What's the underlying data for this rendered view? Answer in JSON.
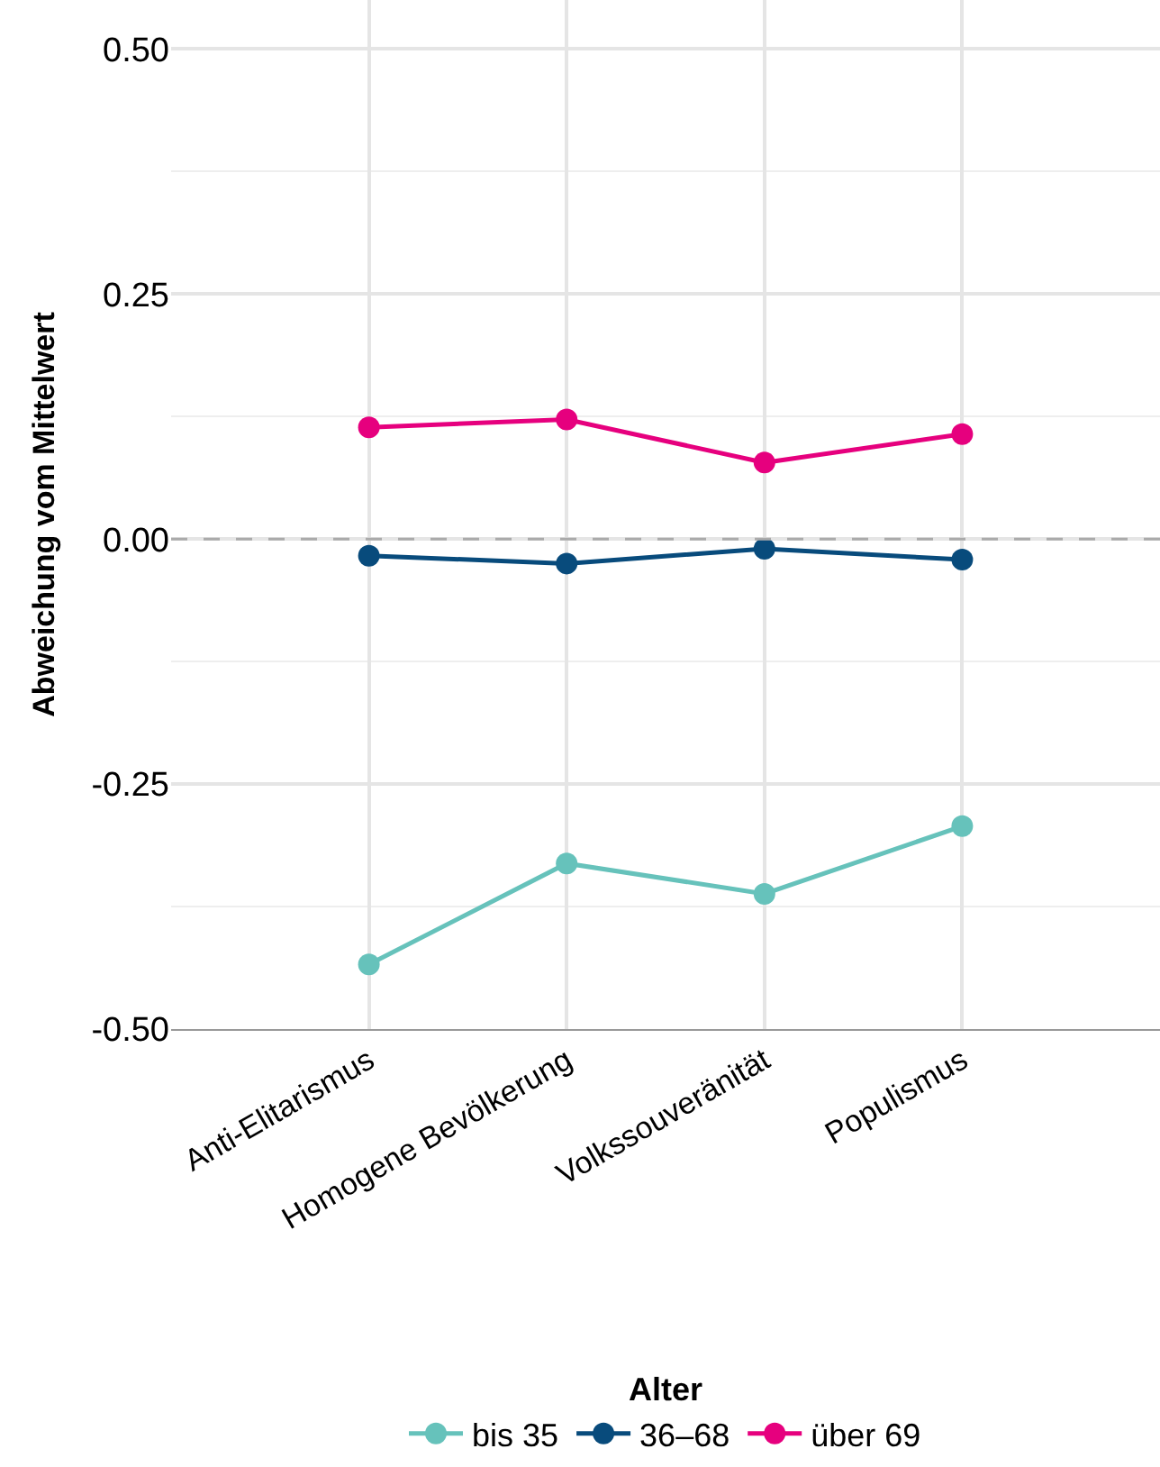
{
  "chart_data": {
    "type": "line",
    "ylabel": "Abweichung vom Mittelwert",
    "legend_title": "Alter",
    "categories": [
      "Anti-Elitarismus",
      "Homogene Bevölkerung",
      "Volkssouveränität",
      "Populismus"
    ],
    "series": [
      {
        "name": "bis 35",
        "color": "#66c2bb",
        "values": [
          -0.434,
          -0.331,
          -0.362,
          -0.293
        ]
      },
      {
        "name": "36–68",
        "color": "#084b7c",
        "values": [
          -0.017,
          -0.025,
          -0.01,
          -0.021
        ]
      },
      {
        "name": "über 69",
        "color": "#e6007e",
        "values": [
          0.114,
          0.122,
          0.078,
          0.107
        ]
      }
    ],
    "ylim": [
      -0.5,
      0.55
    ],
    "yticks": [
      {
        "value": -0.5,
        "label": "-0.50"
      },
      {
        "value": -0.25,
        "label": "-0.25"
      },
      {
        "value": 0,
        "label": "0.00"
      },
      {
        "value": 0.25,
        "label": "0.25"
      },
      {
        "value": 0.5,
        "label": "0.50"
      }
    ],
    "ref_lines": [
      {
        "axis": "y",
        "value": 0,
        "color": "#aaaaaa",
        "line_style": "dashed"
      }
    ],
    "grid": true,
    "legend": "bottom",
    "marker": "circle",
    "line_style": "solid"
  }
}
